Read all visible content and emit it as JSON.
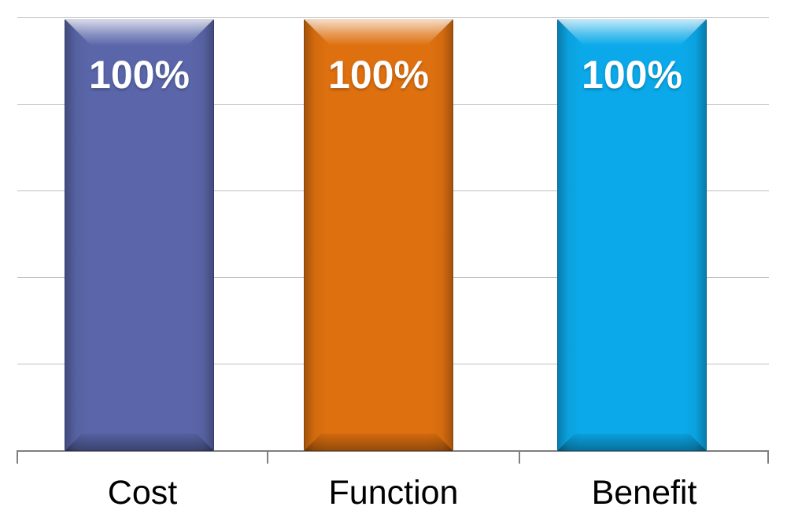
{
  "chart_data": {
    "type": "bar",
    "title": "",
    "categories": [
      "Cost",
      "Function",
      "Benefit"
    ],
    "values": [
      100,
      100,
      100
    ],
    "data_labels": [
      "100%",
      "100%",
      "100%"
    ],
    "bar_colors": [
      "#5a66a9",
      "#de700f",
      "#0ba9e9"
    ],
    "ylim": [
      0,
      100
    ],
    "gridline_interval": 20,
    "grid": true,
    "legend": false,
    "colors": {
      "background": "#ffffff",
      "gridline": "#bfbfbf",
      "axis": "#7f7f7f",
      "data_label_text": "#ffffff",
      "category_text": "#000000"
    }
  }
}
